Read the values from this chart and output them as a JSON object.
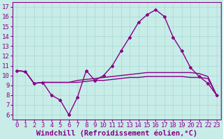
{
  "xlabel": "Windchill (Refroidissement éolien,°C)",
  "background_color": "#c8ece8",
  "grid_color": "#a8d8d0",
  "line_color": "#880088",
  "xlim": [
    -0.5,
    23.5
  ],
  "ylim": [
    5.5,
    17.5
  ],
  "xticks": [
    0,
    1,
    2,
    3,
    4,
    5,
    6,
    7,
    8,
    9,
    10,
    11,
    12,
    13,
    14,
    15,
    16,
    17,
    18,
    19,
    20,
    21,
    22,
    23
  ],
  "yticks": [
    6,
    7,
    8,
    9,
    10,
    11,
    12,
    13,
    14,
    15,
    16,
    17
  ],
  "line1_x": [
    0,
    1,
    2,
    3,
    4,
    5,
    6,
    7,
    8,
    9,
    10,
    11,
    12,
    13,
    14,
    15,
    16,
    17,
    18,
    19,
    20,
    21,
    22,
    23
  ],
  "line1_y": [
    10.5,
    10.4,
    9.2,
    9.3,
    8.0,
    7.5,
    6.0,
    7.8,
    10.5,
    9.5,
    10.0,
    11.0,
    12.5,
    13.9,
    15.4,
    16.2,
    16.7,
    16.0,
    13.9,
    12.5,
    10.8,
    9.9,
    9.2,
    8.0
  ],
  "line2_x": [
    0,
    1,
    2,
    3,
    4,
    5,
    6,
    7,
    8,
    9,
    10,
    11,
    12,
    13,
    14,
    15,
    16,
    17,
    18,
    19,
    20,
    21,
    22,
    23
  ],
  "line2_y": [
    10.5,
    10.4,
    9.2,
    9.3,
    9.3,
    9.3,
    9.3,
    9.5,
    9.6,
    9.7,
    9.8,
    9.9,
    10.0,
    10.1,
    10.2,
    10.3,
    10.3,
    10.3,
    10.3,
    10.3,
    10.3,
    10.2,
    9.9,
    8.0
  ],
  "line3_x": [
    0,
    1,
    2,
    3,
    4,
    5,
    6,
    7,
    8,
    9,
    10,
    11,
    12,
    13,
    14,
    15,
    16,
    17,
    18,
    19,
    20,
    21,
    22,
    23
  ],
  "line3_y": [
    10.5,
    10.4,
    9.2,
    9.3,
    9.3,
    9.3,
    9.3,
    9.3,
    9.4,
    9.5,
    9.5,
    9.6,
    9.7,
    9.8,
    9.8,
    9.9,
    9.9,
    9.9,
    9.9,
    9.9,
    9.8,
    9.8,
    9.7,
    8.0
  ],
  "marker_style": "D",
  "marker_size": 2.0,
  "line_width": 1.0,
  "font_family": "monospace",
  "xlabel_fontsize": 7.5,
  "tick_fontsize": 6.5
}
